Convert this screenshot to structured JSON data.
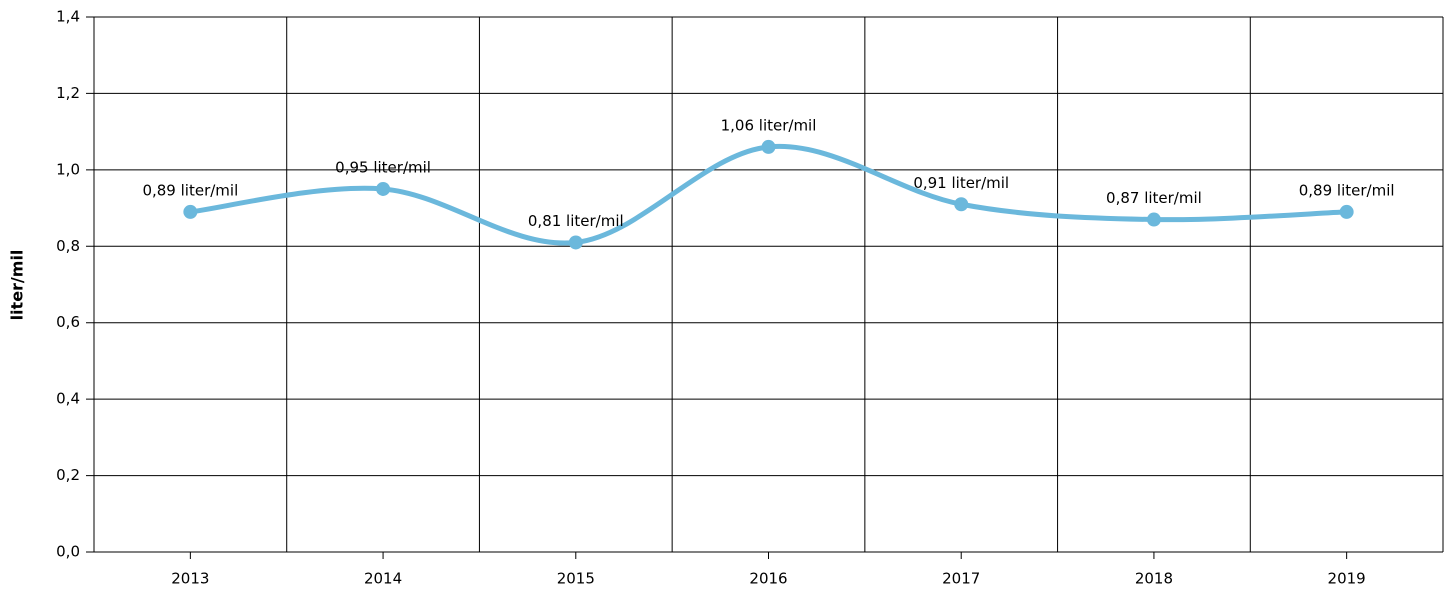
{
  "chart_data": {
    "type": "line",
    "y_label": "liter/mil",
    "categories": [
      "2013",
      "2014",
      "2015",
      "2016",
      "2017",
      "2018",
      "2019"
    ],
    "series": [
      {
        "name": "liter/mil",
        "color": "#6bb8dc",
        "values": [
          0.89,
          0.95,
          0.81,
          1.06,
          0.91,
          0.87,
          0.89
        ],
        "value_labels": [
          "0,89 liter/mil",
          "0,95 liter/mil",
          "0,81 liter/mil",
          "1,06 liter/mil",
          "0,91 liter/mil",
          "0,87 liter/mil",
          "0,89 liter/mil"
        ]
      }
    ],
    "ylim": [
      0,
      1.4
    ],
    "yticks": [
      {
        "value": 0,
        "label": "0,0"
      },
      {
        "value": 0.2,
        "label": "0,2"
      },
      {
        "value": 0.4,
        "label": "0,4"
      },
      {
        "value": 0.6,
        "label": "0,6"
      },
      {
        "value": 0.8,
        "label": "0,8"
      },
      {
        "value": 1.0,
        "label": "1,0"
      },
      {
        "value": 1.2,
        "label": "1,2"
      },
      {
        "value": 1.4,
        "label": "1,4"
      }
    ],
    "grid": true
  }
}
